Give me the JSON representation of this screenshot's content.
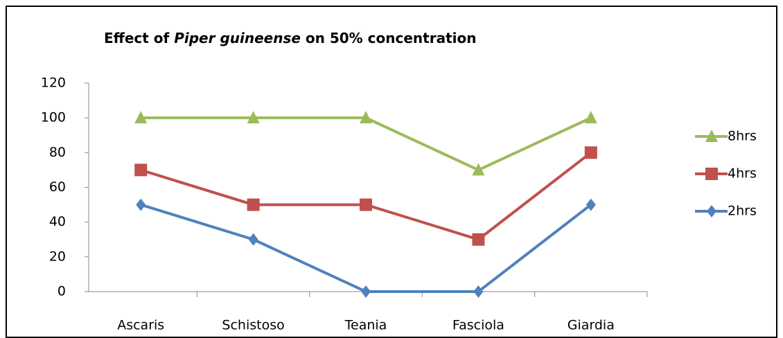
{
  "chart_data": {
    "type": "line",
    "title": [
      "Effect of ",
      "Piper guineense",
      " on 50% concentration"
    ],
    "categories": [
      "Ascaris",
      "Schistoso",
      "Teania",
      "Fasciola",
      "Giardia"
    ],
    "series": [
      {
        "name": "8hrs",
        "color": "#9bbb59",
        "marker": "triangle",
        "values": [
          100,
          100,
          100,
          70,
          100
        ]
      },
      {
        "name": "4hrs",
        "color": "#c0504d",
        "marker": "square",
        "values": [
          70,
          50,
          50,
          30,
          80
        ]
      },
      {
        "name": "2hrs",
        "color": "#4f81bd",
        "marker": "diamond",
        "values": [
          50,
          30,
          0,
          0,
          50
        ]
      }
    ],
    "ylim": [
      0,
      120
    ],
    "yticks": [
      0,
      20,
      40,
      60,
      80,
      100,
      120
    ],
    "grid": false,
    "legend": "right"
  }
}
